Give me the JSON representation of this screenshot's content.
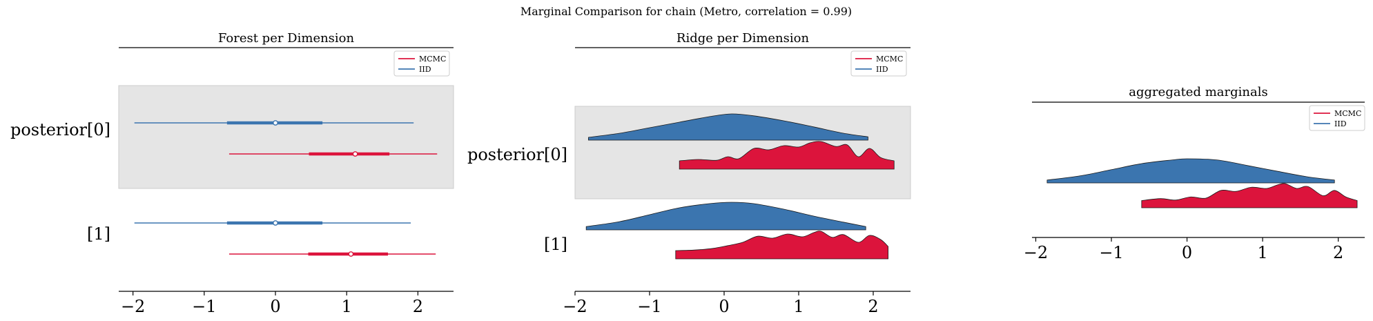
{
  "figure": {
    "suptitle": "Marginal Comparison for chain (Metro, correlation = 0.99)"
  },
  "colors": {
    "mcmc": "#dc143c",
    "mcmc_ridge_top": "#c8103a",
    "iid": "#3b75af",
    "iid_ridge_top": "#3f72a4",
    "band": "#e5e5e5"
  },
  "chart_data": [
    {
      "type": "forest",
      "title": "Forest per Dimension",
      "xlim": [
        -2.2,
        2.5
      ],
      "xticks": [
        -2,
        -1,
        0,
        1,
        2
      ],
      "xtick_labels": [
        "−2",
        "−1",
        "0",
        "1",
        "2"
      ],
      "ytick_labels": [
        "posterior[0]",
        "[1]"
      ],
      "legend": {
        "location": "upper-right",
        "entries": [
          "MCMC",
          "IID"
        ]
      },
      "series": [
        {
          "name": "IID",
          "rows": [
            {
              "dim": 0,
              "hdi_low": -1.98,
              "hdi_high": 1.94,
              "iqr_low": -0.68,
              "iqr_high": 0.66,
              "center": 0.0
            },
            {
              "dim": 1,
              "hdi_low": -1.98,
              "hdi_high": 1.9,
              "iqr_low": -0.68,
              "iqr_high": 0.66,
              "center": 0.0
            }
          ]
        },
        {
          "name": "MCMC",
          "rows": [
            {
              "dim": 0,
              "hdi_low": -0.65,
              "hdi_high": 2.27,
              "iqr_low": 0.47,
              "iqr_high": 1.6,
              "center": 1.12
            },
            {
              "dim": 1,
              "hdi_low": -0.65,
              "hdi_high": 2.25,
              "iqr_low": 0.46,
              "iqr_high": 1.58,
              "center": 1.06
            }
          ]
        }
      ]
    },
    {
      "type": "ridge",
      "title": "Ridge per Dimension",
      "xlim": [
        -2.0,
        2.5
      ],
      "xticks": [
        -2,
        -1,
        0,
        1,
        2
      ],
      "xtick_labels": [
        "−2",
        "−1",
        "0",
        "1",
        "2"
      ],
      "ytick_labels": [
        "posterior[0]",
        "[1]"
      ],
      "legend": {
        "location": "upper-right",
        "entries": [
          "MCMC",
          "IID"
        ]
      },
      "series": [
        {
          "name": "IID",
          "ridges": [
            {
              "dim": 0,
              "x": [
                -1.82,
                -1.4,
                -1.0,
                -0.6,
                -0.2,
                0.1,
                0.4,
                0.8,
                1.2,
                1.6,
                1.93
              ],
              "density": [
                0.1,
                0.25,
                0.45,
                0.65,
                0.85,
                0.95,
                0.88,
                0.7,
                0.48,
                0.25,
                0.12
              ]
            },
            {
              "dim": 1,
              "x": [
                -1.85,
                -1.4,
                -1.0,
                -0.6,
                -0.2,
                0.1,
                0.4,
                0.8,
                1.2,
                1.6,
                1.9
              ],
              "density": [
                0.12,
                0.3,
                0.55,
                0.8,
                0.95,
                1.0,
                0.95,
                0.75,
                0.5,
                0.28,
                0.12
              ]
            }
          ]
        },
        {
          "name": "MCMC",
          "ridges": [
            {
              "dim": 0,
              "x": [
                -0.6,
                -0.35,
                -0.1,
                0.05,
                0.2,
                0.4,
                0.6,
                0.8,
                1.0,
                1.15,
                1.3,
                1.5,
                1.65,
                1.8,
                1.95,
                2.1,
                2.28
              ],
              "density": [
                0.3,
                0.35,
                0.32,
                0.45,
                0.38,
                0.75,
                0.7,
                0.85,
                0.8,
                0.95,
                1.0,
                0.82,
                0.88,
                0.45,
                0.75,
                0.42,
                0.3
              ]
            },
            {
              "dim": 1,
              "x": [
                -0.65,
                -0.4,
                -0.15,
                0.05,
                0.25,
                0.45,
                0.65,
                0.85,
                1.05,
                1.2,
                1.3,
                1.45,
                1.6,
                1.8,
                1.95,
                2.1,
                2.2
              ],
              "density": [
                0.3,
                0.32,
                0.38,
                0.48,
                0.6,
                0.82,
                0.75,
                0.9,
                0.8,
                0.95,
                1.0,
                0.78,
                0.88,
                0.6,
                0.85,
                0.7,
                0.45
              ]
            }
          ]
        }
      ]
    },
    {
      "type": "ridge",
      "title": "aggregated marginals",
      "xlim": [
        -2.05,
        2.35
      ],
      "xticks": [
        -2,
        -1,
        0,
        1,
        2
      ],
      "xtick_labels": [
        "−2",
        "−1",
        "0",
        "1",
        "2"
      ],
      "ytick_labels": [],
      "legend": {
        "location": "upper-right",
        "entries": [
          "MCMC",
          "IID"
        ]
      },
      "series": [
        {
          "name": "IID",
          "ridges": [
            {
              "dim": "aggregated",
              "x": [
                -1.85,
                -1.4,
                -1.0,
                -0.6,
                -0.2,
                0.0,
                0.4,
                0.8,
                1.2,
                1.6,
                1.95
              ],
              "density": [
                0.12,
                0.3,
                0.55,
                0.8,
                0.95,
                1.0,
                0.95,
                0.72,
                0.48,
                0.25,
                0.12
              ]
            }
          ]
        },
        {
          "name": "MCMC",
          "ridges": [
            {
              "dim": "aggregated",
              "x": [
                -0.6,
                -0.35,
                -0.15,
                0.05,
                0.25,
                0.45,
                0.65,
                0.85,
                1.05,
                1.2,
                1.3,
                1.45,
                1.6,
                1.8,
                1.95,
                2.1,
                2.25
              ],
              "density": [
                0.3,
                0.38,
                0.32,
                0.45,
                0.4,
                0.72,
                0.68,
                0.85,
                0.8,
                0.95,
                1.0,
                0.8,
                0.88,
                0.5,
                0.72,
                0.45,
                0.3
              ]
            }
          ]
        }
      ]
    }
  ]
}
